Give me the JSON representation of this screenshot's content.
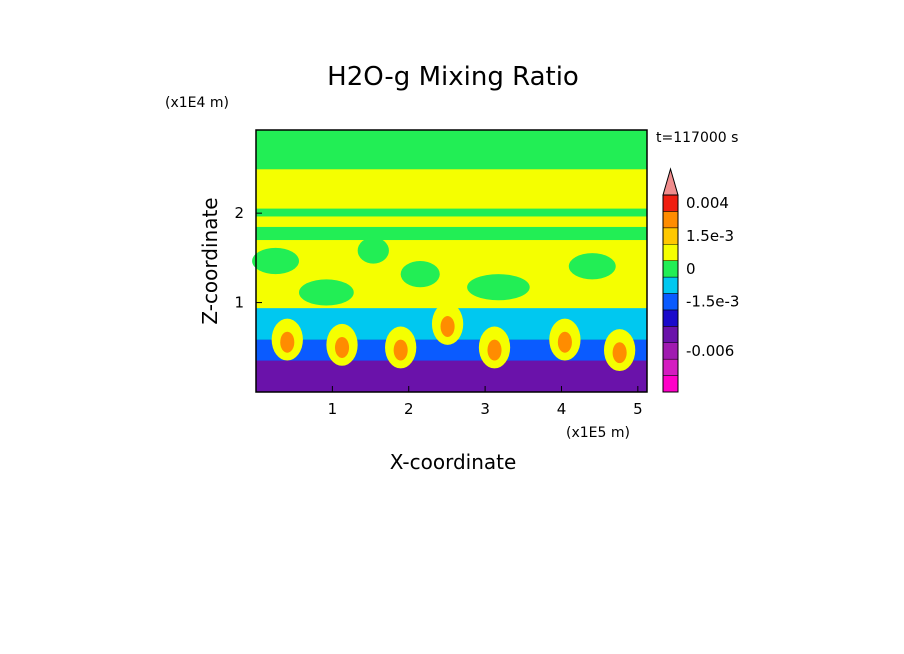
{
  "chart_data": {
    "type": "heatmap",
    "title": "H2O-g Mixing Ratio",
    "xlabel": "X-coordinate",
    "ylabel": "Z-coordinate",
    "x_unit_label": "(x1E5 m)",
    "y_unit_label": "(x1E4 m)",
    "time_label": "t=117000 s",
    "xlim": [
      0.0,
      5.12
    ],
    "ylim": [
      0.0,
      2.93
    ],
    "x_ticks": [
      1,
      2,
      3,
      4,
      5
    ],
    "x_tick_labels": [
      "1",
      "2",
      "3",
      "4",
      "5"
    ],
    "y_ticks": [
      1,
      2
    ],
    "y_tick_labels": [
      "1",
      "2"
    ],
    "colorbar": {
      "levels": [
        "-0.009",
        "-0.0075",
        "-0.006",
        "-0.0045",
        "-0.003",
        "-1.5e-3",
        "-7.5e-4",
        "0",
        "7.5e-4",
        "1.5e-3",
        "0.0025",
        "0.004",
        ""
      ],
      "level_colors": [
        "#ff00c8",
        "#d41cc0",
        "#a01ab0",
        "#6a12aa",
        "#1a0acb",
        "#0a5bff",
        "#00c8f0",
        "#22ee55",
        "#f5ff00",
        "#ffc800",
        "#ff8c00",
        "#f01e10",
        "#f08c8c"
      ],
      "tick_labels": [
        "0.004",
        "1.5e-3",
        "0",
        "-1.5e-3",
        "-0.006"
      ],
      "tick_levels": [
        "0.004",
        "1.5e-3",
        "0",
        "-1.5e-3",
        "-0.006"
      ]
    },
    "field_description_colors": {
      "upper": "#22ee55",
      "middle": "#f5ff00",
      "lower_cold": "#0a5bff",
      "lower_dark": "#6a12aa",
      "hot": "#ff8c00"
    }
  }
}
